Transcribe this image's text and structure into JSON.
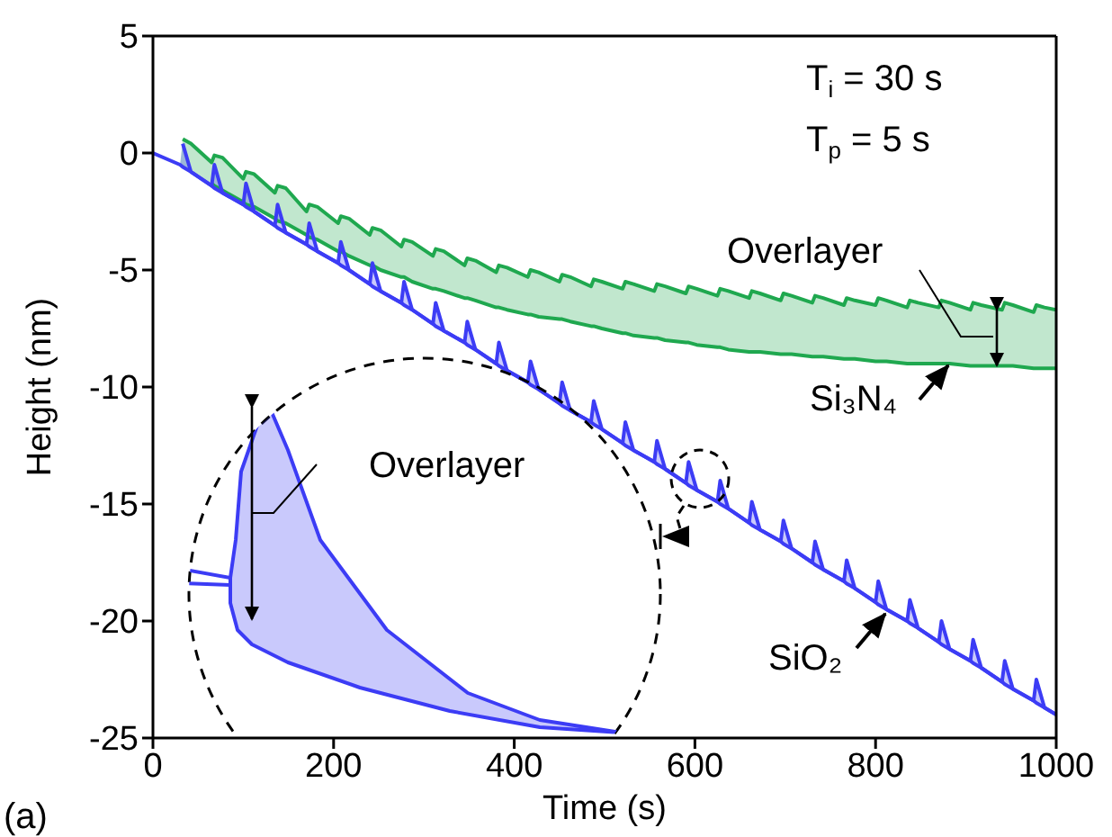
{
  "chart_data": {
    "type": "line",
    "xlabel": "Time (s)",
    "ylabel": "Height (nm)",
    "xlim": [
      0,
      1000
    ],
    "xticks": [
      0,
      200,
      400,
      600,
      800,
      1000
    ],
    "ylim": [
      -25,
      5
    ],
    "yticks": [
      -25,
      -20,
      -15,
      -10,
      -5,
      0,
      5
    ],
    "grid": false,
    "legend": false,
    "annotations": [
      "T$_{i}$ = 30 s",
      "T$_{p}$ = 5 s",
      "Overlayer",
      "Overlayer",
      "(a)"
    ],
    "x": [
      0,
      30,
      33,
      42,
      65,
      68,
      77,
      100,
      103,
      112,
      135,
      138,
      147,
      170,
      173,
      182,
      205,
      208,
      217,
      240,
      243,
      252,
      275,
      278,
      287,
      310,
      313,
      322,
      345,
      348,
      357,
      380,
      383,
      392,
      415,
      418,
      427,
      450,
      453,
      462,
      485,
      488,
      497,
      520,
      523,
      532,
      555,
      558,
      567,
      590,
      593,
      602,
      625,
      628,
      637,
      660,
      663,
      672,
      695,
      698,
      707,
      730,
      733,
      742,
      765,
      768,
      777,
      800,
      803,
      812,
      835,
      838,
      847,
      870,
      873,
      882,
      905,
      908,
      917,
      940,
      943,
      952,
      975,
      978,
      987,
      1000
    ],
    "series": [
      {
        "name": "Si₃N₄",
        "color": "#1fa84f",
        "values": [
          null,
          null,
          null,
          null,
          -1.3,
          -1.4,
          -1.6,
          -2.1,
          -2.2,
          -2.3,
          -2.8,
          -2.9,
          -3.0,
          -3.5,
          -3.6,
          -3.7,
          -4.2,
          -4.2,
          -4.4,
          -4.8,
          -4.8,
          -5.0,
          -5.3,
          -5.3,
          -5.5,
          -5.8,
          -5.8,
          -5.9,
          -6.2,
          -6.2,
          -6.3,
          -6.6,
          -6.6,
          -6.7,
          -6.9,
          -6.9,
          -7.0,
          -7.1,
          -7.1,
          -7.2,
          -7.4,
          -7.4,
          -7.5,
          -7.7,
          -7.7,
          -7.8,
          -7.9,
          -7.9,
          -8.0,
          -8.1,
          -8.1,
          -8.2,
          -8.3,
          -8.3,
          -8.4,
          -8.5,
          -8.5,
          -8.5,
          -8.6,
          -8.6,
          -8.6,
          -8.7,
          -8.7,
          -8.7,
          -8.8,
          -8.8,
          -8.8,
          -8.9,
          -8.9,
          -8.9,
          -9.0,
          -9.0,
          -9.0,
          -9.0,
          -9.0,
          -9.0,
          -9.1,
          -9.1,
          -9.1,
          -9.1,
          -9.1,
          -9.1,
          -9.2,
          -9.2,
          -9.2,
          -9.2
        ],
        "lower": [
          0,
          -0.5,
          -0.6,
          -0.8,
          -1.3,
          -1.4,
          -1.6,
          -2.1,
          -2.2,
          -2.3,
          -2.8,
          -2.9,
          -3.0,
          -3.5,
          -3.6,
          -3.7,
          -4.2,
          -4.2,
          -4.4,
          -4.8,
          -4.8,
          -5.0,
          -5.3,
          -5.3,
          -5.5,
          -5.8,
          -5.8,
          -5.9,
          -6.2,
          -6.2,
          -6.3,
          -6.6,
          -6.6,
          -6.7,
          -6.9,
          -6.9,
          -7.0,
          -7.1,
          -7.1,
          -7.2,
          -7.4,
          -7.4,
          -7.5,
          -7.7,
          -7.7,
          -7.8,
          -7.9,
          -7.9,
          -8.0,
          -8.1,
          -8.1,
          -8.2,
          -8.3,
          -8.3,
          -8.4,
          -8.5,
          -8.5,
          -8.5,
          -8.6,
          -8.6,
          -8.6,
          -8.7,
          -8.7,
          -8.7,
          -8.8,
          -8.8,
          -8.8,
          -8.9,
          -8.9,
          -8.9,
          -9.0,
          -9.0,
          -9.0,
          -9.0,
          -9.0,
          -9.0,
          -9.1,
          -9.1,
          -9.1,
          -9.1,
          -9.1,
          -9.1,
          -9.2,
          -9.2,
          -9.2,
          -9.2
        ],
        "upper": [
          0,
          -0.5,
          0.6,
          0.4,
          -0.4,
          -0.1,
          -0.2,
          -1.1,
          -0.8,
          -0.9,
          -1.7,
          -1.4,
          -1.5,
          -2.5,
          -2.2,
          -2.3,
          -3.0,
          -2.7,
          -2.8,
          -3.5,
          -3.2,
          -3.3,
          -4.0,
          -3.7,
          -3.8,
          -4.4,
          -4.1,
          -4.2,
          -4.8,
          -4.5,
          -4.6,
          -5.1,
          -4.8,
          -4.9,
          -5.3,
          -5.0,
          -5.1,
          -5.5,
          -5.2,
          -5.3,
          -5.7,
          -5.4,
          -5.5,
          -5.8,
          -5.5,
          -5.6,
          -5.9,
          -5.6,
          -5.7,
          -6.0,
          -5.7,
          -5.8,
          -6.1,
          -5.8,
          -5.9,
          -6.2,
          -5.9,
          -6.0,
          -6.3,
          -6.0,
          -6.1,
          -6.4,
          -6.1,
          -6.2,
          -6.5,
          -6.2,
          -6.3,
          -6.5,
          -6.2,
          -6.3,
          -6.6,
          -6.3,
          -6.4,
          -6.6,
          -6.3,
          -6.4,
          -6.7,
          -6.4,
          -6.5,
          -6.7,
          -6.4,
          -6.5,
          -6.8,
          -6.5,
          -6.6,
          -6.7
        ]
      },
      {
        "color": "#1fa84f",
        "values": [
          null,
          null,
          0.6,
          0.4,
          -0.4,
          -0.1,
          -0.2,
          -1.1,
          -0.8,
          -0.9,
          -1.7,
          -1.4,
          -1.5,
          -2.5,
          -2.2,
          -2.3,
          -3.0,
          -2.7,
          -2.8,
          -3.5,
          -3.2,
          -3.3,
          -4.0,
          -3.7,
          -3.8,
          -4.4,
          -4.1,
          -4.2,
          -4.8,
          -4.5,
          -4.6,
          -5.1,
          -4.8,
          -4.9,
          -5.3,
          -5.0,
          -5.1,
          -5.5,
          -5.2,
          -5.3,
          -5.7,
          -5.4,
          -5.5,
          -5.8,
          -5.5,
          -5.6,
          -5.9,
          -5.6,
          -5.7,
          -6.0,
          -5.7,
          -5.8,
          -6.1,
          -5.8,
          -5.9,
          -6.2,
          -5.9,
          -6.0,
          -6.3,
          -6.0,
          -6.1,
          -6.4,
          -6.1,
          -6.2,
          -6.5,
          -6.2,
          -6.3,
          -6.5,
          -6.2,
          -6.3,
          -6.6,
          -6.3,
          -6.4,
          -6.6,
          -6.3,
          -6.4,
          -6.7,
          -6.4,
          -6.5,
          -6.7,
          -6.4,
          -6.5,
          -6.8,
          -6.5,
          -6.6,
          -6.7
        ]
      },
      {
        "name": "SiO₂",
        "color": "#3c3cf5",
        "values": [
          0,
          -0.5,
          -0.6,
          -0.8,
          -1.4,
          -1.5,
          -1.7,
          -2.2,
          -2.3,
          -2.5,
          -3.1,
          -3.2,
          -3.4,
          -3.9,
          -4.0,
          -4.2,
          -4.7,
          -4.8,
          -5.0,
          -5.6,
          -5.7,
          -5.9,
          -6.4,
          -6.5,
          -6.7,
          -7.3,
          -7.4,
          -7.6,
          -8.1,
          -8.2,
          -8.4,
          -9.0,
          -9.1,
          -9.3,
          -9.8,
          -9.9,
          -10.1,
          -10.7,
          -10.8,
          -11.0,
          -11.5,
          -11.6,
          -11.8,
          -12.4,
          -12.5,
          -12.7,
          -13.2,
          -13.3,
          -13.5,
          -14.1,
          -14.2,
          -14.4,
          -14.9,
          -15.0,
          -15.2,
          -15.8,
          -15.9,
          -16.1,
          -16.6,
          -16.7,
          -16.9,
          -17.5,
          -17.6,
          -17.8,
          -18.3,
          -18.4,
          -18.6,
          -19.2,
          -19.3,
          -19.5,
          -20.0,
          -20.1,
          -20.3,
          -20.9,
          -21.0,
          -21.2,
          -21.7,
          -21.8,
          -22.0,
          -22.6,
          -22.7,
          -22.9,
          -23.4,
          -23.5,
          -23.7,
          -24.0
        ],
        "lower": [
          0,
          -0.5,
          -0.6,
          -0.8,
          -1.4,
          -1.5,
          -1.7,
          -2.2,
          -2.3,
          -2.5,
          -3.1,
          -3.2,
          -3.4,
          -3.9,
          -4.0,
          -4.2,
          -4.7,
          -4.8,
          -5.0,
          -5.6,
          -5.7,
          -5.9,
          -6.4,
          -6.5,
          -6.7,
          -7.3,
          -7.4,
          -7.6,
          -8.1,
          -8.2,
          -8.4,
          -9.0,
          -9.1,
          -9.3,
          -9.8,
          -9.9,
          -10.1,
          -10.7,
          -10.8,
          -11.0,
          -11.5,
          -11.6,
          -11.8,
          -12.4,
          -12.5,
          -12.7,
          -13.2,
          -13.3,
          -13.5,
          -14.1,
          -14.2,
          -14.4,
          -14.9,
          -15.0,
          -15.2,
          -15.8,
          -15.9,
          -16.1,
          -16.6,
          -16.7,
          -16.9,
          -17.5,
          -17.6,
          -17.8,
          -18.3,
          -18.4,
          -18.6,
          -19.2,
          -19.3,
          -19.5,
          -20.0,
          -20.1,
          -20.3,
          -20.9,
          -21.0,
          -21.2,
          -21.7,
          -21.8,
          -22.0,
          -22.6,
          -22.7,
          -22.9,
          -23.4,
          -23.5,
          -23.7,
          -24.0
        ],
        "upper": [
          0,
          -0.5,
          0.4,
          -0.8,
          -1.4,
          -0.5,
          -1.7,
          -2.2,
          -1.3,
          -2.5,
          -3.1,
          -2.2,
          -3.4,
          -3.9,
          -3.0,
          -4.2,
          -4.7,
          -3.8,
          -5.0,
          -5.6,
          -4.7,
          -5.9,
          -6.4,
          -5.5,
          -6.7,
          -7.3,
          -6.4,
          -7.6,
          -8.1,
          -7.2,
          -8.4,
          -9.0,
          -8.1,
          -9.3,
          -9.8,
          -8.9,
          -10.1,
          -10.7,
          -9.8,
          -11.0,
          -11.5,
          -10.6,
          -11.8,
          -12.4,
          -11.5,
          -12.7,
          -13.2,
          -12.3,
          -13.5,
          -14.1,
          -13.2,
          -14.4,
          -14.9,
          -14.0,
          -15.2,
          -15.8,
          -14.9,
          -16.1,
          -16.6,
          -15.7,
          -16.9,
          -17.5,
          -16.6,
          -17.8,
          -18.3,
          -17.4,
          -18.6,
          -19.2,
          -18.3,
          -19.5,
          -20.0,
          -19.1,
          -20.3,
          -20.9,
          -20.0,
          -21.2,
          -21.7,
          -20.8,
          -22.0,
          -22.6,
          -21.7,
          -22.9,
          -23.4,
          -22.5,
          -23.7,
          -24.0
        ]
      },
      {
        "color": "#3c3cf5",
        "values": [
          null,
          null,
          0.4,
          -0.8,
          -1.4,
          -0.5,
          -1.7,
          -2.2,
          -1.3,
          -2.5,
          -3.1,
          -2.2,
          -3.4,
          -3.9,
          -3.0,
          -4.2,
          -4.7,
          -3.8,
          -5.0,
          -5.6,
          -4.7,
          -5.9,
          -6.4,
          -5.5,
          -6.7,
          -7.3,
          -6.4,
          -7.6,
          -8.1,
          -7.2,
          -8.4,
          -9.0,
          -8.1,
          -9.3,
          -9.8,
          -8.9,
          -10.1,
          -10.7,
          -9.8,
          -11.0,
          -11.5,
          -10.6,
          -11.8,
          -12.4,
          -11.5,
          -12.7,
          -13.2,
          -12.3,
          -13.5,
          -14.1,
          -13.2,
          -14.4,
          -14.9,
          -14.0,
          -15.2,
          -15.8,
          -14.9,
          -16.1,
          -16.6,
          -15.7,
          -16.9,
          -17.5,
          -16.6,
          -17.8,
          -18.3,
          -17.4,
          -18.6,
          -19.2,
          -18.3,
          -19.5,
          -20.0,
          -19.1,
          -20.3,
          -20.9,
          -20.0,
          -21.2,
          -21.7,
          -20.8,
          -22.0,
          -22.6,
          -21.7,
          -22.9,
          -23.4,
          -22.5,
          -23.7,
          -24.0
        ]
      }
    ]
  }
}
